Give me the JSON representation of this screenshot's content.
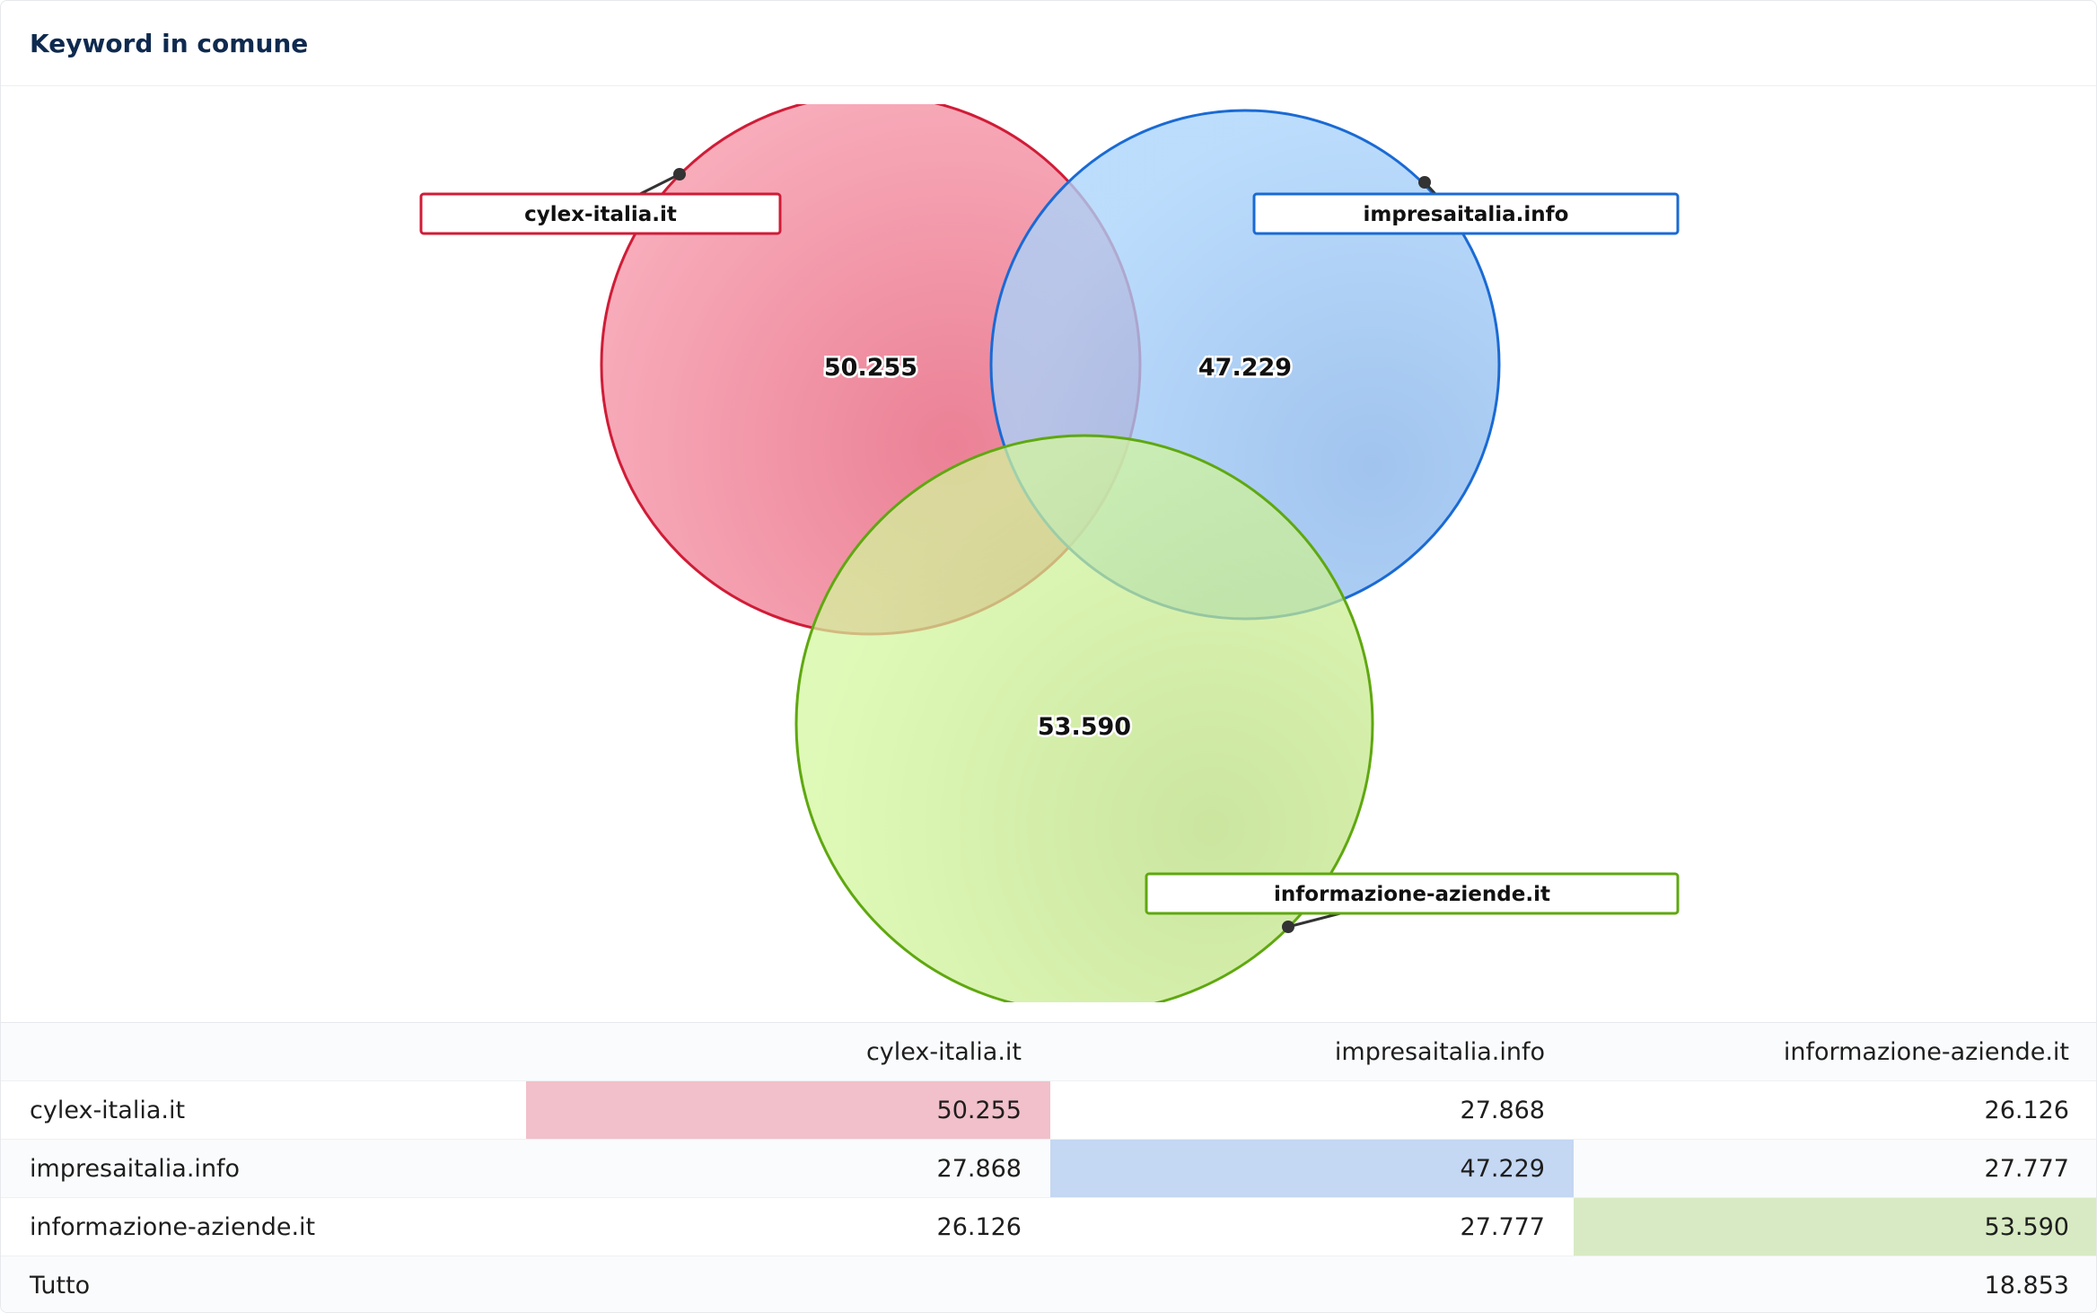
{
  "card": {
    "title": "Keyword in comune"
  },
  "colors": {
    "cylex": "#e0263f",
    "cylex_fill": "#f4899f",
    "impresa": "#1a73d9",
    "impresa_fill": "#8fc2f5",
    "informazione": "#6cb31a",
    "informazione_fill": "#c3eb86",
    "diag_cylex": "#f1c0ca",
    "diag_impresa": "#c4d7f3",
    "diag_informazione": "#d8eac3"
  },
  "chart_data": {
    "type": "venn",
    "sets": [
      {
        "name": "cylex-italia.it",
        "value": 50255,
        "label": "50.255"
      },
      {
        "name": "impresaitalia.info",
        "value": 47229,
        "label": "47.229"
      },
      {
        "name": "informazione-aziende.it",
        "value": 53590,
        "label": "53.590"
      }
    ],
    "intersections": [
      {
        "sets": [
          "cylex-italia.it",
          "impresaitalia.info"
        ],
        "value": 27868
      },
      {
        "sets": [
          "cylex-italia.it",
          "informazione-aziende.it"
        ],
        "value": 26126
      },
      {
        "sets": [
          "impresaitalia.info",
          "informazione-aziende.it"
        ],
        "value": 27777
      },
      {
        "sets": [
          "cylex-italia.it",
          "impresaitalia.info",
          "informazione-aziende.it"
        ],
        "value": 18853
      }
    ]
  },
  "table": {
    "columns": [
      "",
      "cylex-italia.it",
      "impresaitalia.info",
      "informazione-aziende.it"
    ],
    "rows": [
      {
        "label": "cylex-italia.it",
        "cells": [
          "50.255",
          "27.868",
          "26.126"
        ]
      },
      {
        "label": "impresaitalia.info",
        "cells": [
          "27.868",
          "47.229",
          "27.777"
        ]
      },
      {
        "label": "informazione-aziende.it",
        "cells": [
          "26.126",
          "27.777",
          "53.590"
        ]
      },
      {
        "label": "Tutto",
        "cells": [
          "",
          "",
          "18.853"
        ]
      }
    ]
  }
}
